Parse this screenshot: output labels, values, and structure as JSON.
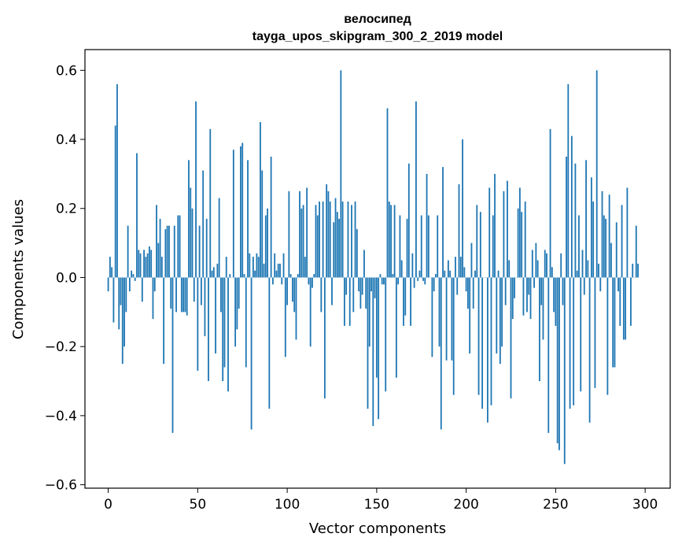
{
  "chart_data": {
    "type": "bar",
    "title": "велосипед",
    "subtitle": "tayga_upos_skipgram_300_2_2019 model",
    "xlabel": "Vector components",
    "ylabel": "Components values",
    "xlim": [
      -13,
      314
    ],
    "ylim": [
      -0.61,
      0.66
    ],
    "xticks": [
      0,
      50,
      100,
      150,
      200,
      250,
      300
    ],
    "xtick_labels": [
      "0",
      "50",
      "100",
      "150",
      "200",
      "250",
      "300"
    ],
    "yticks": [
      -0.6,
      -0.4,
      -0.2,
      0.0,
      0.2,
      0.4,
      0.6
    ],
    "ytick_labels": [
      "−0.6",
      "−0.4",
      "−0.2",
      "0.0",
      "0.2",
      "0.4",
      "0.6"
    ],
    "bar_color": "#1f77b4",
    "grid": false,
    "x_start": 0,
    "values": [
      -0.04,
      0.06,
      0.03,
      -0.13,
      0.44,
      0.56,
      -0.15,
      -0.08,
      -0.25,
      -0.2,
      -0.1,
      0.15,
      -0.04,
      0.02,
      0.01,
      -0.01,
      0.36,
      0.08,
      0.07,
      -0.07,
      0.08,
      0.06,
      0.07,
      0.09,
      0.08,
      -0.12,
      -0.04,
      0.21,
      0.1,
      0.17,
      0.06,
      -0.25,
      0.14,
      0.15,
      0.15,
      -0.09,
      -0.45,
      0.15,
      -0.1,
      0.18,
      0.18,
      -0.1,
      -0.1,
      -0.1,
      -0.11,
      0.34,
      0.26,
      0.2,
      -0.07,
      0.51,
      -0.27,
      0.15,
      -0.08,
      0.31,
      -0.17,
      0.17,
      -0.3,
      0.43,
      0.02,
      0.03,
      -0.22,
      0.04,
      0.23,
      -0.1,
      -0.3,
      -0.26,
      0.06,
      -0.33,
      0.01,
      0.0,
      0.37,
      -0.2,
      -0.15,
      -0.09,
      0.38,
      0.39,
      0.01,
      -0.26,
      0.34,
      0.07,
      -0.44,
      0.06,
      0.02,
      0.07,
      0.06,
      0.45,
      0.31,
      0.04,
      0.18,
      0.2,
      -0.38,
      0.35,
      -0.02,
      0.07,
      0.02,
      0.04,
      0.04,
      -0.02,
      0.07,
      -0.23,
      -0.08,
      0.25,
      0.01,
      -0.07,
      -0.1,
      -0.18,
      0.01,
      0.25,
      0.2,
      0.21,
      0.06,
      0.26,
      -0.02,
      -0.2,
      -0.03,
      0.01,
      0.21,
      0.18,
      0.22,
      -0.1,
      0.22,
      -0.35,
      0.27,
      0.25,
      0.22,
      -0.08,
      0.16,
      0.23,
      0.19,
      0.17,
      0.6,
      0.22,
      -0.14,
      -0.05,
      0.22,
      -0.14,
      0.21,
      -0.1,
      0.22,
      0.14,
      -0.04,
      -0.09,
      -0.05,
      0.08,
      -0.09,
      -0.38,
      -0.2,
      -0.04,
      -0.43,
      -0.06,
      -0.29,
      -0.41,
      0.01,
      -0.02,
      -0.02,
      -0.33,
      0.49,
      0.22,
      0.21,
      0.01,
      0.21,
      -0.29,
      -0.02,
      0.18,
      0.05,
      -0.14,
      -0.11,
      0.17,
      0.33,
      -0.14,
      0.07,
      -0.03,
      0.51,
      -0.01,
      0.02,
      0.18,
      -0.01,
      -0.02,
      0.3,
      0.18,
      0.0,
      -0.23,
      -0.04,
      0.01,
      0.18,
      -0.2,
      -0.44,
      0.32,
      0.02,
      -0.24,
      0.05,
      0.02,
      -0.24,
      -0.34,
      0.06,
      -0.05,
      0.27,
      0.06,
      0.4,
      0.03,
      -0.04,
      -0.09,
      -0.22,
      0.1,
      -0.09,
      0.02,
      0.21,
      -0.34,
      0.19,
      -0.38,
      0.0,
      0.0,
      -0.42,
      0.26,
      -0.37,
      0.18,
      0.3,
      -0.22,
      0.02,
      -0.25,
      -0.2,
      0.25,
      -0.08,
      0.28,
      0.05,
      -0.35,
      -0.12,
      -0.06,
      0.0,
      0.2,
      0.26,
      0.19,
      -0.11,
      0.22,
      -0.1,
      -0.05,
      -0.12,
      0.08,
      -0.03,
      0.1,
      0.05,
      -0.3,
      -0.08,
      -0.18,
      0.08,
      0.07,
      -0.45,
      0.43,
      0.03,
      -0.1,
      -0.14,
      -0.48,
      -0.5,
      0.07,
      -0.08,
      -0.54,
      0.35,
      0.56,
      -0.38,
      0.41,
      -0.37,
      0.33,
      0.02,
      0.18,
      -0.33,
      0.08,
      -0.05,
      0.34,
      0.05,
      -0.42,
      0.29,
      0.22,
      -0.32,
      0.6,
      0.04,
      -0.04,
      0.25,
      0.18,
      0.17,
      -0.34,
      0.24,
      0.1,
      -0.26,
      -0.26,
      0.16,
      -0.04,
      -0.14,
      0.21,
      -0.18,
      -0.18,
      0.26,
      0.0,
      -0.14,
      0.04,
      0.0,
      0.15,
      0.04
    ]
  }
}
